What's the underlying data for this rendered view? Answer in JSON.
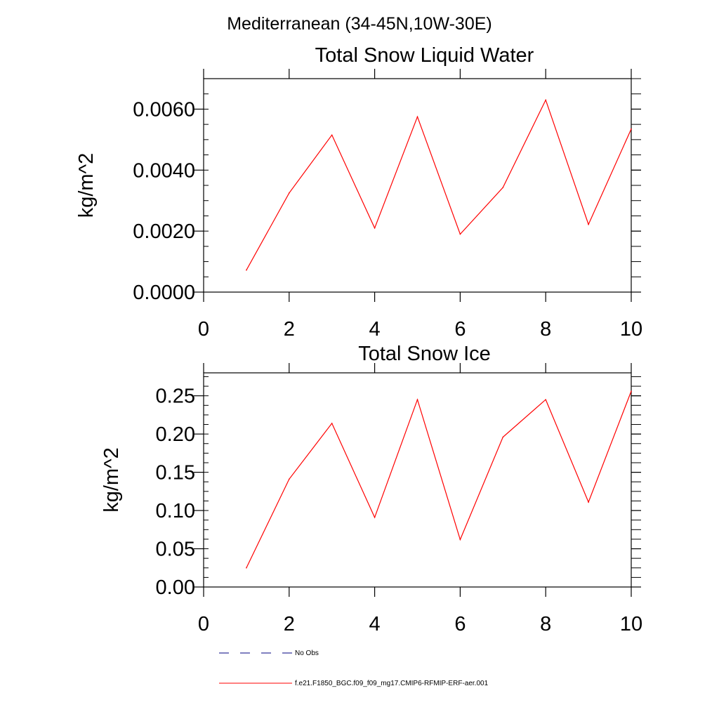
{
  "suptitle": "Mediterranean (34-45N,10W-30E)",
  "legend": {
    "obs_label": "No Obs",
    "model_label": "f.e21.F1850_BGC.f09_f09_mg17.CMIP6-RFMIP-ERF-aer.001"
  },
  "colors": {
    "model": "#ff0000",
    "obs": "#000080",
    "axis": "#000000"
  },
  "chart_data": [
    {
      "type": "line",
      "title": "Total Snow Liquid Water",
      "xlabel": "",
      "ylabel": "kg/m^2",
      "xlim": [
        0,
        10
      ],
      "ylim": [
        0,
        0.007
      ],
      "xticks": [
        0,
        2,
        4,
        6,
        8,
        10
      ],
      "xtick_labels": [
        "0",
        "2",
        "4",
        "6",
        "8",
        "10"
      ],
      "yticks": [
        0,
        0.002,
        0.004,
        0.006
      ],
      "ytick_labels": [
        "0.0000",
        "0.0020",
        "0.0040",
        "0.0060"
      ],
      "series": [
        {
          "name": "f.e21.F1850_BGC.f09_f09_mg17.CMIP6-RFMIP-ERF-aer.001",
          "x": [
            1,
            2,
            3,
            4,
            5,
            6,
            7,
            8,
            9,
            10
          ],
          "values": [
            0.00072,
            0.00325,
            0.00515,
            0.0021,
            0.00575,
            0.0019,
            0.00343,
            0.0063,
            0.00222,
            0.00535
          ]
        }
      ]
    },
    {
      "type": "line",
      "title": "Total Snow Ice",
      "xlabel": "",
      "ylabel": "kg/m^2",
      "xlim": [
        0,
        10
      ],
      "ylim": [
        0,
        0.28
      ],
      "xticks": [
        0,
        2,
        4,
        6,
        8,
        10
      ],
      "xtick_labels": [
        "0",
        "2",
        "4",
        "6",
        "8",
        "10"
      ],
      "yticks": [
        0,
        0.05,
        0.1,
        0.15,
        0.2,
        0.25
      ],
      "ytick_labels": [
        "0.00",
        "0.05",
        "0.10",
        "0.15",
        "0.20",
        "0.25"
      ],
      "series": [
        {
          "name": "f.e21.F1850_BGC.f09_f09_mg17.CMIP6-RFMIP-ERF-aer.001",
          "x": [
            1,
            2,
            3,
            4,
            5,
            6,
            7,
            8,
            9,
            10
          ],
          "values": [
            0.025,
            0.141,
            0.214,
            0.091,
            0.245,
            0.062,
            0.196,
            0.245,
            0.111,
            0.256
          ]
        }
      ]
    }
  ]
}
